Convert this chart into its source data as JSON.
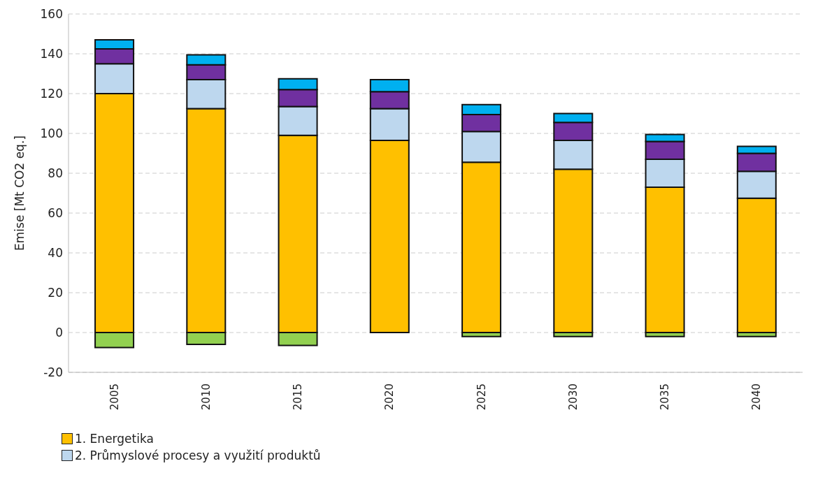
{
  "chart_data": {
    "type": "bar",
    "stacked": true,
    "ylabel": "Emise [Mt CO2 eq.]",
    "categories": [
      "2005",
      "2010",
      "2015",
      "2020",
      "2025",
      "2030",
      "2035",
      "2040"
    ],
    "series": [
      {
        "name": "1. Energetika",
        "color": "#ffc000",
        "values": [
          120,
          112.5,
          99,
          96.5,
          85.5,
          82,
          73,
          67.5
        ]
      },
      {
        "name": "2. Průmyslové procesy a využití produktů",
        "color": "#bdd7ee",
        "values": [
          15,
          14.5,
          14.5,
          16,
          15.5,
          14.5,
          14,
          13.5
        ]
      },
      {
        "color": "#7030a0",
        "values": [
          7.5,
          7.5,
          8.5,
          8.5,
          8.5,
          9,
          9,
          9
        ]
      },
      {
        "color": "#00b0f0",
        "values": [
          4.5,
          5,
          5.5,
          6,
          5,
          4.5,
          3.5,
          3.5
        ]
      },
      {
        "color": "#92d050",
        "values": [
          -7.5,
          -6,
          -6.5,
          0,
          -2,
          -2,
          -2,
          -2
        ]
      }
    ],
    "ylim": [
      -20,
      160
    ],
    "yticks": [
      -20,
      0,
      20,
      40,
      60,
      80,
      100,
      120,
      140,
      160
    ],
    "grid": "y",
    "legend": "bottom left"
  }
}
